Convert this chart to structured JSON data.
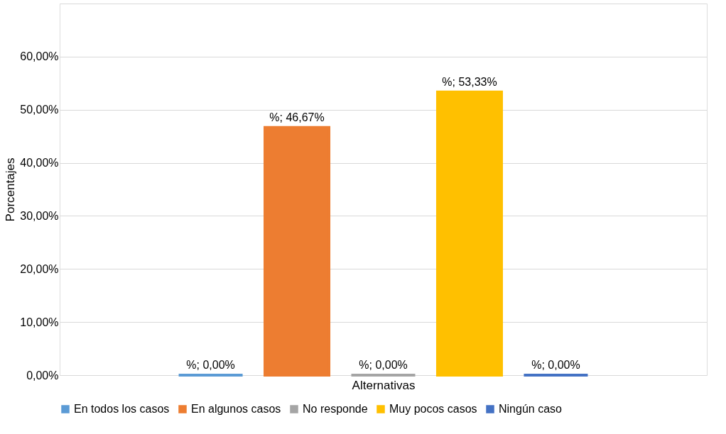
{
  "chart_data": {
    "type": "bar",
    "categories": [
      null
    ],
    "xlabel": "Alternativas",
    "ylabel": "Porcentajes",
    "series": [
      {
        "name": "En todos los casos",
        "color": "#5b9bd5",
        "values": [
          0
        ],
        "value_labels": [
          "%; 0,00%"
        ]
      },
      {
        "name": "En algunos casos",
        "color": "#ed7d31",
        "values": [
          46.67
        ],
        "value_labels": [
          "%; 46,67%"
        ]
      },
      {
        "name": "No responde",
        "color": "#a5a5a5",
        "values": [
          0
        ],
        "value_labels": [
          "%; 0,00%"
        ]
      },
      {
        "name": "Muy pocos casos",
        "color": "#ffc000",
        "values": [
          53.33
        ],
        "value_labels": [
          "%; 53,33%"
        ]
      },
      {
        "name": "Ningún caso",
        "color": "#4472c4",
        "values": [
          0
        ],
        "value_labels": [
          "%; 0,00%"
        ]
      }
    ],
    "ylim": [
      0,
      70
    ],
    "yticks": [
      {
        "value": 0,
        "label": "0,00%"
      },
      {
        "value": 10,
        "label": "10,00%"
      },
      {
        "value": 20,
        "label": "20,00%"
      },
      {
        "value": 30,
        "label": "30,00%"
      },
      {
        "value": 40,
        "label": "40,00%"
      },
      {
        "value": 50,
        "label": "50,00%"
      },
      {
        "value": 60,
        "label": "60,00%"
      },
      {
        "value": 70,
        "label": null
      }
    ],
    "grid": "y",
    "legend": "bottom"
  }
}
